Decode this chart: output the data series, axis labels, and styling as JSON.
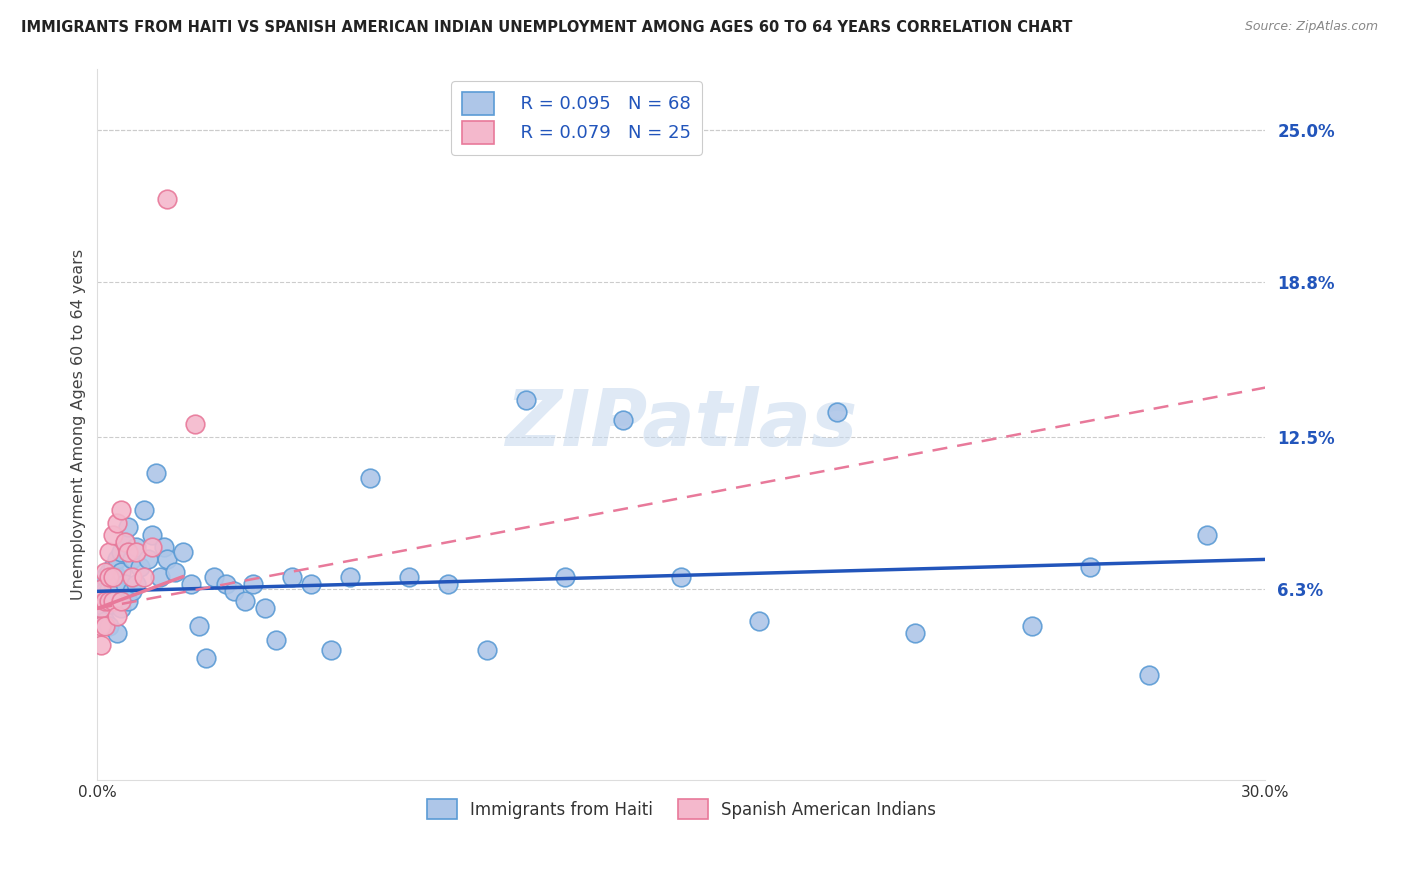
{
  "title": "IMMIGRANTS FROM HAITI VS SPANISH AMERICAN INDIAN UNEMPLOYMENT AMONG AGES 60 TO 64 YEARS CORRELATION CHART",
  "source": "Source: ZipAtlas.com",
  "ylabel": "Unemployment Among Ages 60 to 64 years",
  "xlim": [
    0.0,
    0.3
  ],
  "ylim": [
    -0.015,
    0.275
  ],
  "right_yticks": [
    0.063,
    0.125,
    0.188,
    0.25
  ],
  "right_yticklabels": [
    "6.3%",
    "12.5%",
    "18.8%",
    "25.0%"
  ],
  "haiti_color": "#aec6e8",
  "haiti_edge_color": "#5b9bd5",
  "spanish_color": "#f4b8cc",
  "spanish_edge_color": "#e8799a",
  "haiti_line_color": "#2255bb",
  "spanish_line_color": "#e8799a",
  "legend_labels": [
    "Immigrants from Haiti",
    "Spanish American Indians"
  ],
  "watermark": "ZIPatlas",
  "haiti_x": [
    0.001,
    0.001,
    0.001,
    0.002,
    0.002,
    0.002,
    0.002,
    0.003,
    0.003,
    0.003,
    0.003,
    0.004,
    0.004,
    0.004,
    0.005,
    0.005,
    0.005,
    0.005,
    0.006,
    0.006,
    0.006,
    0.007,
    0.007,
    0.008,
    0.008,
    0.009,
    0.009,
    0.01,
    0.01,
    0.011,
    0.012,
    0.013,
    0.014,
    0.015,
    0.016,
    0.017,
    0.018,
    0.02,
    0.022,
    0.024,
    0.026,
    0.028,
    0.03,
    0.033,
    0.035,
    0.038,
    0.04,
    0.043,
    0.046,
    0.05,
    0.055,
    0.06,
    0.065,
    0.07,
    0.08,
    0.09,
    0.1,
    0.11,
    0.12,
    0.135,
    0.15,
    0.17,
    0.19,
    0.21,
    0.24,
    0.255,
    0.27,
    0.285
  ],
  "haiti_y": [
    0.063,
    0.058,
    0.052,
    0.068,
    0.062,
    0.055,
    0.05,
    0.07,
    0.063,
    0.057,
    0.048,
    0.072,
    0.065,
    0.058,
    0.075,
    0.068,
    0.062,
    0.045,
    0.078,
    0.07,
    0.055,
    0.082,
    0.065,
    0.088,
    0.058,
    0.075,
    0.062,
    0.08,
    0.065,
    0.072,
    0.095,
    0.075,
    0.085,
    0.11,
    0.068,
    0.08,
    0.075,
    0.07,
    0.078,
    0.065,
    0.048,
    0.035,
    0.068,
    0.065,
    0.062,
    0.058,
    0.065,
    0.055,
    0.042,
    0.068,
    0.065,
    0.038,
    0.068,
    0.108,
    0.068,
    0.065,
    0.038,
    0.14,
    0.068,
    0.132,
    0.068,
    0.05,
    0.135,
    0.045,
    0.048,
    0.072,
    0.028,
    0.085
  ],
  "spanish_x": [
    0.001,
    0.001,
    0.001,
    0.001,
    0.002,
    0.002,
    0.002,
    0.003,
    0.003,
    0.003,
    0.004,
    0.004,
    0.004,
    0.005,
    0.005,
    0.006,
    0.006,
    0.007,
    0.008,
    0.009,
    0.01,
    0.012,
    0.014,
    0.018,
    0.025
  ],
  "spanish_y": [
    0.063,
    0.055,
    0.048,
    0.04,
    0.07,
    0.058,
    0.048,
    0.078,
    0.068,
    0.058,
    0.085,
    0.068,
    0.058,
    0.09,
    0.052,
    0.095,
    0.058,
    0.082,
    0.078,
    0.068,
    0.078,
    0.068,
    0.08,
    0.222,
    0.13
  ],
  "haiti_trend_x": [
    0.0,
    0.3
  ],
  "haiti_trend_y": [
    0.062,
    0.075
  ],
  "spanish_trend_x": [
    0.0,
    0.3
  ],
  "spanish_trend_y": [
    0.055,
    0.145
  ]
}
